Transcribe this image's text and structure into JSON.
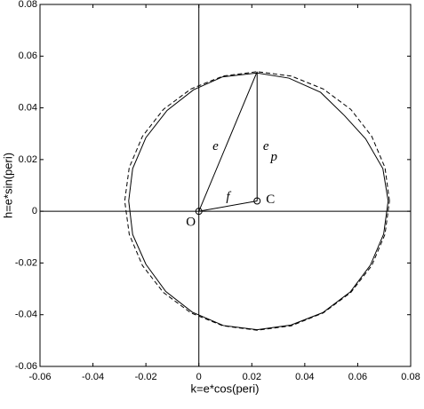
{
  "chart_data": {
    "type": "line",
    "xlabel": "k=e*cos(peri)",
    "ylabel": "h=e*sin(peri)",
    "xlim": [
      -0.06,
      0.08
    ],
    "ylim": [
      -0.06,
      0.08
    ],
    "xticks": [
      -0.06,
      -0.04,
      -0.02,
      0,
      0.02,
      0.04,
      0.06,
      0.08
    ],
    "yticks": [
      -0.06,
      -0.04,
      -0.02,
      0,
      0.02,
      0.04,
      0.06,
      0.08
    ],
    "grid": false,
    "series": [
      {
        "color": "#000000",
        "dash": "solid",
        "x": [
          0.0715,
          0.0695,
          0.063,
          0.055,
          0.046,
          0.034,
          0.022,
          0.009,
          -0.002,
          -0.012,
          -0.02,
          -0.025,
          -0.0265,
          -0.025,
          -0.02,
          -0.0125,
          -0.0025,
          0.0093,
          0.022,
          0.0348,
          0.0468,
          0.0572,
          0.0648,
          0.0698,
          0.0715
        ],
        "values": [
          0.004,
          0.0165,
          0.028,
          0.037,
          0.046,
          0.0515,
          0.0535,
          0.052,
          0.047,
          0.039,
          0.0285,
          0.0165,
          0.004,
          -0.009,
          -0.0205,
          -0.031,
          -0.039,
          -0.0442,
          -0.0458,
          -0.044,
          -0.0392,
          -0.0312,
          -0.0208,
          -0.0088,
          0.004
        ]
      },
      {
        "color": "#000000",
        "dash": "dashed",
        "x": [
          0.072,
          0.0703,
          0.0653,
          0.0574,
          0.047,
          0.0349,
          0.022,
          0.0091,
          -0.003,
          -0.0134,
          -0.0213,
          -0.0263,
          -0.028,
          -0.0263,
          -0.0213,
          -0.0134,
          -0.003,
          0.0091,
          0.022,
          0.0349,
          0.047,
          0.0574,
          0.0653,
          0.0703,
          0.072
        ],
        "values": [
          0.004,
          0.0169,
          0.029,
          0.0394,
          0.0473,
          0.0523,
          0.054,
          0.0523,
          0.0473,
          0.0394,
          0.029,
          0.0169,
          0.004,
          -0.0089,
          -0.021,
          -0.0314,
          -0.0393,
          -0.0443,
          -0.046,
          -0.0443,
          -0.0393,
          -0.0314,
          -0.021,
          -0.0089,
          0.004
        ]
      }
    ],
    "vectors": [
      {
        "label": "e",
        "x": [
          0,
          0.022
        ],
        "y": [
          0,
          0.054
        ]
      },
      {
        "label": "e",
        "subscript": "p",
        "x": [
          0.022,
          0.022
        ],
        "y": [
          0.054,
          0.004
        ]
      },
      {
        "label": "f",
        "x": [
          0,
          0.022
        ],
        "y": [
          0,
          0.004
        ]
      }
    ],
    "points": [
      {
        "label": "O",
        "x": 0,
        "y": 0
      },
      {
        "label": "C",
        "x": 0.022,
        "y": 0.004
      }
    ]
  }
}
